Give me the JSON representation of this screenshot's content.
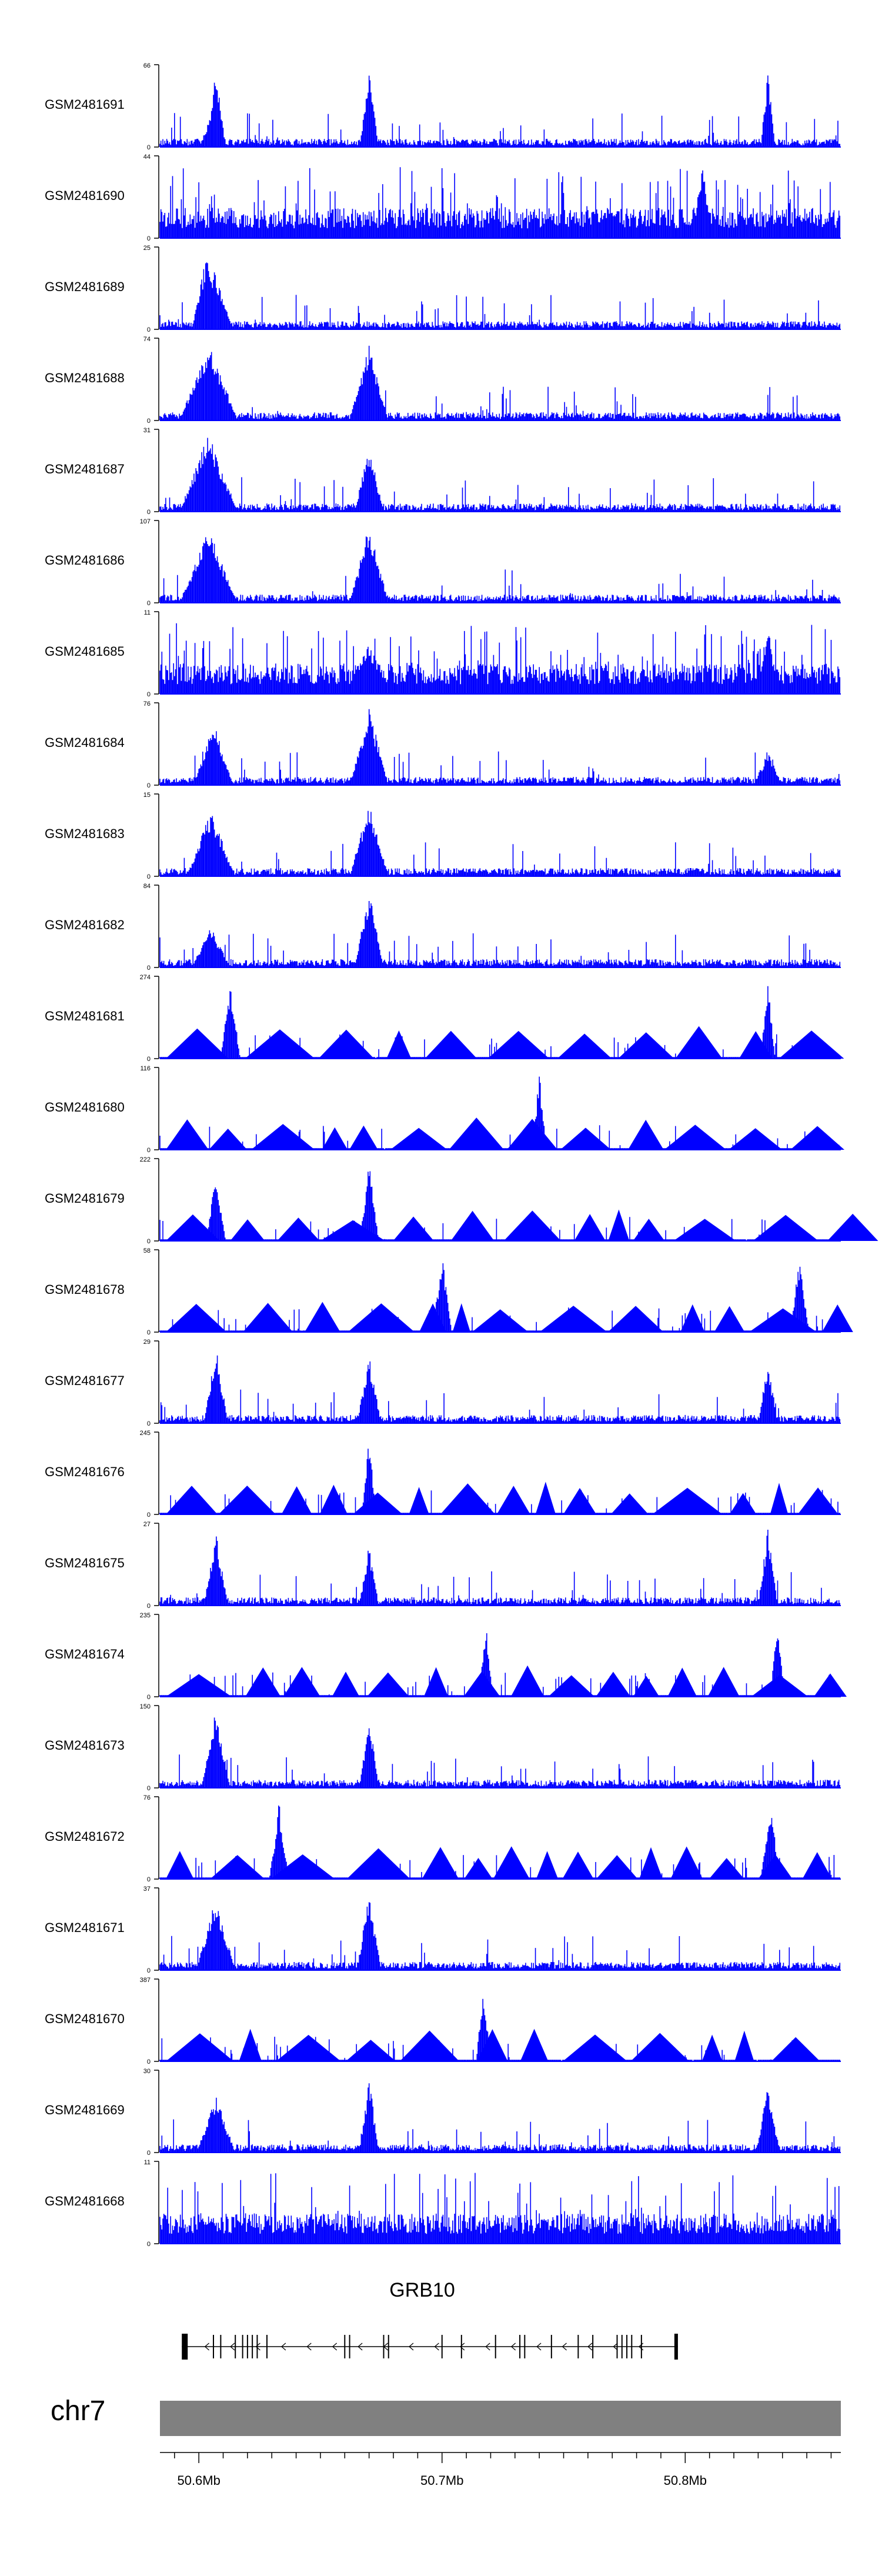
{
  "chart_data": {
    "type": "area",
    "title": "",
    "xlabel": "",
    "ylabel": "",
    "colors": {
      "signal": "#0000ff",
      "axis": "#000000",
      "chrom_bar": "#808080",
      "gene": "#000000"
    },
    "tracks": [
      {
        "name": "GSM2481691",
        "ymax": "66",
        "style": "peaks",
        "peaks": [
          [
            50.604,
            0.3,
            0.004
          ],
          [
            50.607,
            0.95,
            0.004
          ],
          [
            50.67,
            0.9,
            0.004
          ],
          [
            50.834,
            0.95,
            0.003
          ]
        ]
      },
      {
        "name": "GSM2481690",
        "ymax": "44",
        "style": "coverage",
        "peaks": [
          [
            50.807,
            0.95,
            0.004
          ],
          [
            50.769,
            0.4,
            0.01
          ]
        ]
      },
      {
        "name": "GSM2481689",
        "ymax": "25",
        "style": "peaks",
        "peaks": [
          [
            50.603,
            0.9,
            0.006
          ],
          [
            50.606,
            0.75,
            0.008
          ]
        ]
      },
      {
        "name": "GSM2481688",
        "ymax": "74",
        "style": "peaks",
        "peaks": [
          [
            50.604,
            0.95,
            0.012
          ],
          [
            50.67,
            0.95,
            0.008
          ]
        ]
      },
      {
        "name": "GSM2481687",
        "ymax": "31",
        "style": "peaks",
        "peaks": [
          [
            50.604,
            0.95,
            0.012
          ],
          [
            50.67,
            0.8,
            0.006
          ]
        ]
      },
      {
        "name": "GSM2481686",
        "ymax": "107",
        "style": "peaks",
        "peaks": [
          [
            50.604,
            0.9,
            0.012
          ],
          [
            50.67,
            0.95,
            0.008
          ]
        ]
      },
      {
        "name": "GSM2481685",
        "ymax": "11",
        "style": "coverage",
        "peaks": [
          [
            50.67,
            0.6,
            0.01
          ],
          [
            50.834,
            0.95,
            0.004
          ]
        ]
      },
      {
        "name": "GSM2481684",
        "ymax": "76",
        "style": "peaks",
        "peaks": [
          [
            50.606,
            0.8,
            0.008
          ],
          [
            50.67,
            0.95,
            0.008
          ],
          [
            50.834,
            0.4,
            0.006
          ]
        ]
      },
      {
        "name": "GSM2481683",
        "ymax": "15",
        "style": "peaks",
        "peaks": [
          [
            50.605,
            0.8,
            0.01
          ],
          [
            50.67,
            0.9,
            0.008
          ]
        ]
      },
      {
        "name": "GSM2481682",
        "ymax": "84",
        "style": "peaks",
        "peaks": [
          [
            50.605,
            0.5,
            0.008
          ],
          [
            50.67,
            0.95,
            0.006
          ]
        ]
      },
      {
        "name": "GSM2481681",
        "ymax": "274",
        "style": "triangles",
        "peaks": [
          [
            50.613,
            0.95,
            0.004
          ],
          [
            50.834,
            0.95,
            0.003
          ]
        ]
      },
      {
        "name": "GSM2481680",
        "ymax": "116",
        "style": "triangles",
        "peaks": [
          [
            50.74,
            0.95,
            0.003
          ]
        ]
      },
      {
        "name": "GSM2481679",
        "ymax": "222",
        "style": "triangles",
        "peaks": [
          [
            50.607,
            0.85,
            0.004
          ],
          [
            50.67,
            0.95,
            0.004
          ]
        ]
      },
      {
        "name": "GSM2481678",
        "ymax": "58",
        "style": "triangles",
        "peaks": [
          [
            50.7,
            0.95,
            0.004
          ],
          [
            50.847,
            0.9,
            0.004
          ]
        ]
      },
      {
        "name": "GSM2481677",
        "ymax": "29",
        "style": "peaks",
        "peaks": [
          [
            50.607,
            0.95,
            0.005
          ],
          [
            50.67,
            0.85,
            0.005
          ],
          [
            50.834,
            0.8,
            0.004
          ]
        ]
      },
      {
        "name": "GSM2481676",
        "ymax": "245",
        "style": "triangles",
        "peaks": [
          [
            50.67,
            0.95,
            0.003
          ]
        ]
      },
      {
        "name": "GSM2481675",
        "ymax": "27",
        "style": "peaks",
        "peaks": [
          [
            50.607,
            0.9,
            0.005
          ],
          [
            50.67,
            0.75,
            0.004
          ],
          [
            50.834,
            0.95,
            0.004
          ]
        ]
      },
      {
        "name": "GSM2481674",
        "ymax": "235",
        "style": "triangles",
        "peaks": [
          [
            50.718,
            0.95,
            0.003
          ],
          [
            50.838,
            0.95,
            0.003
          ]
        ]
      },
      {
        "name": "GSM2481673",
        "ymax": "150",
        "style": "peaks",
        "peaks": [
          [
            50.607,
            0.95,
            0.006
          ],
          [
            50.67,
            0.9,
            0.004
          ]
        ]
      },
      {
        "name": "GSM2481672",
        "ymax": "76",
        "style": "triangles",
        "peaks": [
          [
            50.633,
            0.95,
            0.004
          ],
          [
            50.835,
            0.95,
            0.004
          ]
        ]
      },
      {
        "name": "GSM2481671",
        "ymax": "37",
        "style": "peaks",
        "peaks": [
          [
            50.607,
            0.9,
            0.008
          ],
          [
            50.67,
            0.95,
            0.005
          ]
        ]
      },
      {
        "name": "GSM2481670",
        "ymax": "387",
        "style": "triangles",
        "peaks": [
          [
            50.717,
            0.95,
            0.003
          ]
        ]
      },
      {
        "name": "GSM2481669",
        "ymax": "30",
        "style": "peaks",
        "peaks": [
          [
            50.607,
            0.7,
            0.008
          ],
          [
            50.67,
            0.95,
            0.004
          ],
          [
            50.834,
            0.8,
            0.005
          ]
        ]
      },
      {
        "name": "GSM2481668",
        "ymax": "11",
        "style": "coverage",
        "peaks": []
      }
    ],
    "gene": {
      "name": "GRB10",
      "start": 50.593,
      "end": 50.797,
      "strand": "-"
    },
    "chromosome": {
      "name": "chr7"
    },
    "xaxis": {
      "range": [
        50.584,
        50.864
      ],
      "ticks": [
        50.6,
        50.7,
        50.8
      ],
      "tick_labels": [
        "50.6Mb",
        "50.7Mb",
        "50.8Mb"
      ]
    }
  }
}
